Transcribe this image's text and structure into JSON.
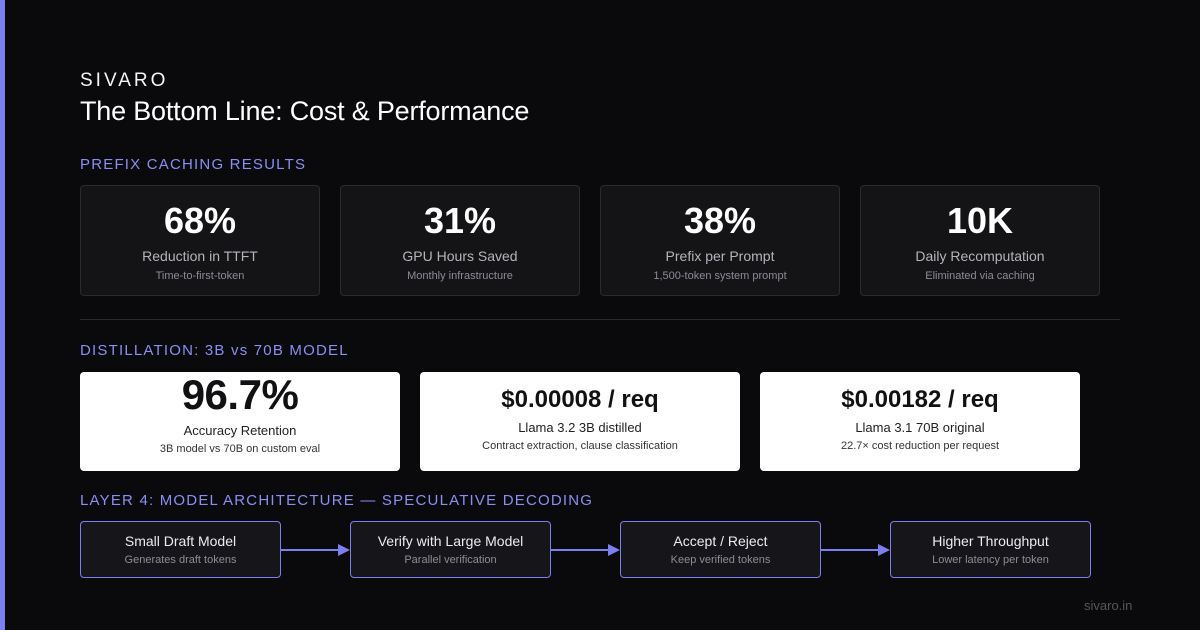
{
  "brand": "SIVARO",
  "title": "The Bottom Line: Cost & Performance",
  "prefix_caching": {
    "label": "PREFIX CACHING RESULTS",
    "cards": [
      {
        "value": "68%",
        "label": "Reduction in TTFT",
        "sub": "Time-to-first-token"
      },
      {
        "value": "31%",
        "label": "GPU Hours Saved",
        "sub": "Monthly infrastructure"
      },
      {
        "value": "38%",
        "label": "Prefix per Prompt",
        "sub": "1,500-token system prompt"
      },
      {
        "value": "10K",
        "label": "Daily Recomputation",
        "sub": "Eliminated via caching"
      }
    ]
  },
  "distillation": {
    "label": "DISTILLATION: 3B vs 70B MODEL",
    "cards": [
      {
        "value": "96.7%",
        "label": "Accuracy Retention",
        "sub": "3B model vs 70B on custom eval"
      },
      {
        "value": "$0.00008 / req",
        "label": "Llama 3.2 3B distilled",
        "sub": "Contract extraction, clause classification"
      },
      {
        "value": "$0.00182 / req",
        "label": "Llama 3.1 70B original",
        "sub": "22.7× cost reduction per request"
      }
    ]
  },
  "speculative": {
    "label": "LAYER 4: MODEL ARCHITECTURE — SPECULATIVE DECODING",
    "steps": [
      {
        "title": "Small Draft Model",
        "sub": "Generates draft tokens"
      },
      {
        "title": "Verify with Large Model",
        "sub": "Parallel verification"
      },
      {
        "title": "Accept / Reject",
        "sub": "Keep verified tokens"
      },
      {
        "title": "Higher Throughput",
        "sub": "Lower latency per token"
      }
    ]
  },
  "footer": "sivaro.in",
  "colors": {
    "accent": "#7b7ff0",
    "section_label": "#8a8ef5",
    "background": "#0a0a0c"
  }
}
